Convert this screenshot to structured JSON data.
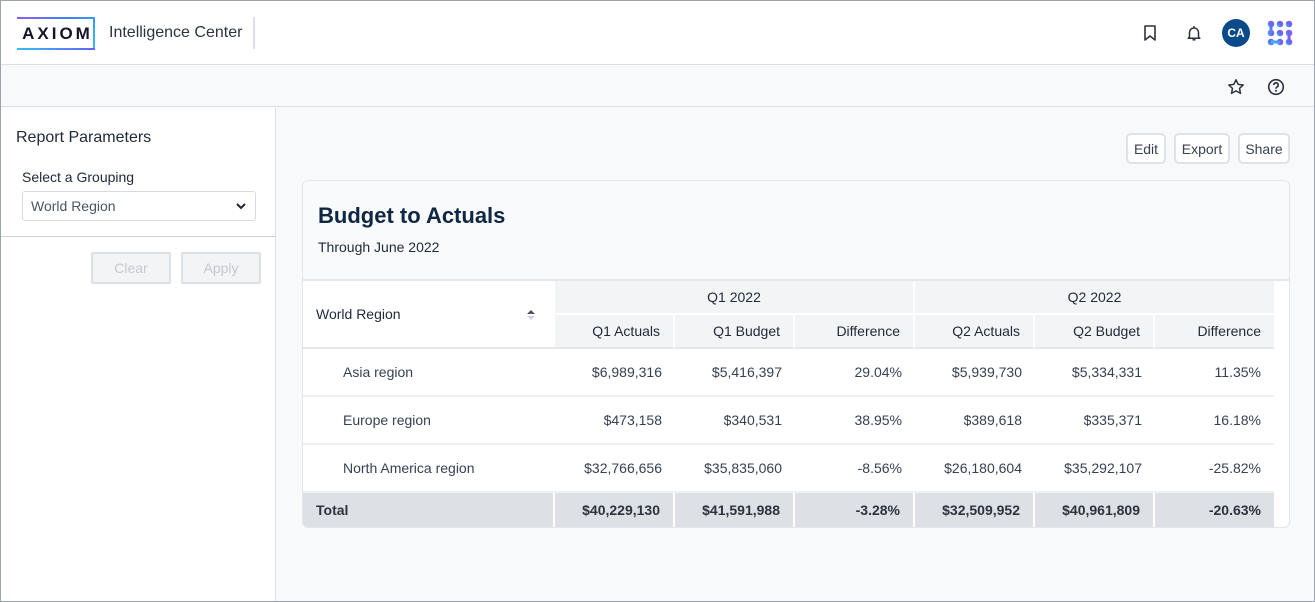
{
  "header": {
    "logo_text": "AXIOM",
    "app_title": "Intelligence Center",
    "user_initials": "CA",
    "icons": [
      "bookmark-icon",
      "bell-icon",
      "apps-grid-icon",
      "star-icon",
      "help-icon"
    ]
  },
  "sidebar": {
    "title": "Report Parameters",
    "grouping_label": "Select a Grouping",
    "grouping_value": "World Region",
    "clear_label": "Clear",
    "apply_label": "Apply"
  },
  "actions": {
    "edit_label": "Edit",
    "export_label": "Export",
    "share_label": "Share"
  },
  "report": {
    "title": "Budget to Actuals",
    "subtitle": "Through June 2022",
    "row_header": "World Region",
    "groups": [
      "Q1 2022",
      "Q2 2022"
    ],
    "columns": [
      "Q1 Actuals",
      "Q1 Budget",
      "Difference",
      "Q2 Actuals",
      "Q2 Budget",
      "Difference"
    ],
    "rows": [
      {
        "name": "Asia region",
        "values": [
          "$6,989,316",
          "$5,416,397",
          "29.04%",
          "$5,939,730",
          "$5,334,331",
          "11.35%"
        ]
      },
      {
        "name": "Europe region",
        "values": [
          "$473,158",
          "$340,531",
          "38.95%",
          "$389,618",
          "$335,371",
          "16.18%"
        ]
      },
      {
        "name": "North America region",
        "values": [
          "$32,766,656",
          "$35,835,060",
          "-8.56%",
          "$26,180,604",
          "$35,292,107",
          "-25.82%"
        ]
      }
    ],
    "total": {
      "name": "Total",
      "values": [
        "$40,229,130",
        "$41,591,988",
        "-3.28%",
        "$32,509,952",
        "$40,961,809",
        "-20.63%"
      ]
    }
  },
  "colors": {
    "avatar": "#0b4a8a",
    "title": "#0f2742",
    "total_row": "#dde0e5"
  }
}
